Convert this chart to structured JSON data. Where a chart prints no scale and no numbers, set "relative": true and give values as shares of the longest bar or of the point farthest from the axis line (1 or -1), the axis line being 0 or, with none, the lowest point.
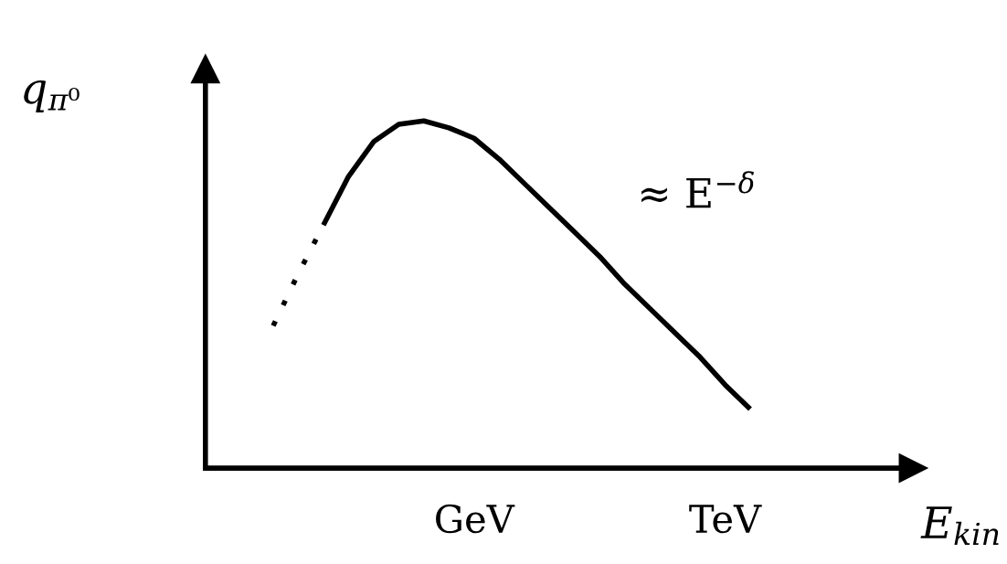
{
  "chart_data": {
    "type": "line",
    "relative": true,
    "xlabel": "E$_{kin}$",
    "ylabel": "q$_{π⁰}$",
    "categories": [
      null,
      null,
      null,
      null,
      null,
      null,
      null,
      null,
      "GeV",
      null,
      null,
      null,
      null,
      null,
      null,
      null,
      null,
      null,
      "TeV",
      null
    ],
    "series": [
      {
        "color": "#000000",
        "line_style": "dotted",
        "values": [
          0.41,
          0.56,
          0.7,
          null,
          null,
          null,
          null,
          null,
          null,
          null,
          null,
          null,
          null,
          null,
          null,
          null,
          null,
          null,
          null,
          null
        ]
      },
      {
        "color": "#000000",
        "line_style": "solid",
        "values": [
          null,
          null,
          0.7,
          0.84,
          0.94,
          0.99,
          1.0,
          0.98,
          0.95,
          0.89,
          0.82,
          0.75,
          0.68,
          0.61,
          0.53,
          0.46,
          0.39,
          0.32,
          0.24,
          0.17
        ]
      }
    ],
    "annotations": [
      "≈ E$^{−δ}$"
    ],
    "grid": false,
    "legend": false
  }
}
